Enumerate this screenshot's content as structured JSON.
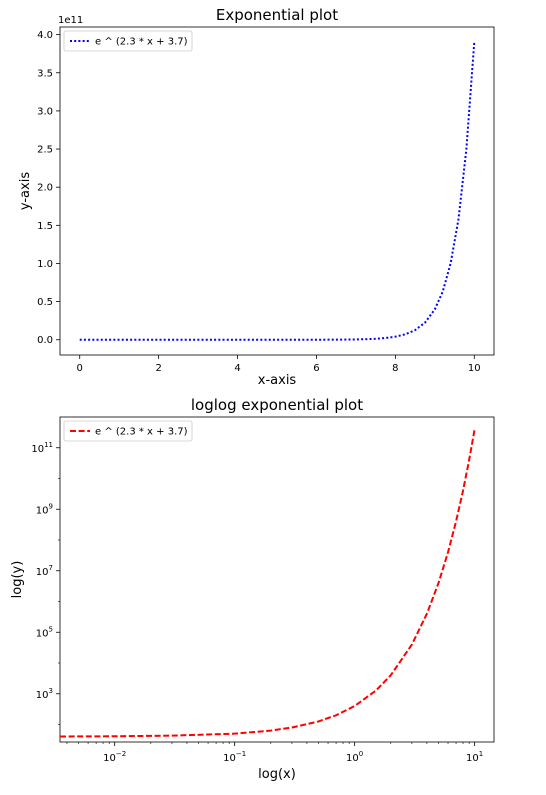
{
  "chart_data": [
    {
      "type": "line",
      "title": "Exponential plot",
      "xlabel": "x-axis",
      "ylabel": "y-axis",
      "x_scale": "linear",
      "y_scale": "linear",
      "xlim": [
        -0.5,
        10.5
      ],
      "ylim": [
        -20000000000.0,
        410000000000.0
      ],
      "y_offset_label": "1e11",
      "x_ticks": [
        0,
        2,
        4,
        6,
        8,
        10
      ],
      "x_tick_labels": [
        "0",
        "2",
        "4",
        "6",
        "8",
        "10"
      ],
      "y_ticks": [
        0,
        50000000000.0,
        100000000000.0,
        150000000000.0,
        200000000000.0,
        250000000000.0,
        300000000000.0,
        350000000000.0,
        400000000000.0
      ],
      "y_tick_labels": [
        "0.0",
        "0.5",
        "1.0",
        "1.5",
        "2.0",
        "2.5",
        "3.0",
        "3.5",
        "4.0"
      ],
      "grid": false,
      "legend_position": "upper-left",
      "series": [
        {
          "name": "e ^ (2.3 * x + 3.7)",
          "color": "#0000ff",
          "line_style": "dotted",
          "x": [
            0,
            1,
            2,
            3,
            4,
            5,
            6,
            6.5,
            7,
            7.25,
            7.5,
            7.75,
            8,
            8.25,
            8.5,
            8.75,
            9,
            9.2,
            9.4,
            9.6,
            9.8,
            10
          ],
          "y": [
            40,
            400,
            4000,
            40000,
            400000,
            4000000,
            40000000,
            130000000,
            400000000,
            720000000,
            1280000000,
            2270000000,
            4000000000,
            7100000000,
            12600000000,
            22400000000,
            39900000000,
            63000000000,
            100000000000,
            158000000000,
            250000000000,
            390000000000
          ]
        }
      ]
    },
    {
      "type": "line",
      "title": "loglog exponential plot",
      "xlabel": "log(x)",
      "ylabel": "log(y)",
      "x_scale": "log",
      "y_scale": "log",
      "xlim": [
        0.0035,
        14.5
      ],
      "ylim": [
        27,
        1000000000000.0
      ],
      "x_ticks": [
        0.01,
        0.1,
        1,
        10
      ],
      "x_tick_labels": [
        [
          "10",
          "−2"
        ],
        [
          "10",
          "−1"
        ],
        [
          "10",
          "0"
        ],
        [
          "10",
          "1"
        ]
      ],
      "y_ticks": [
        1000,
        100000,
        10000000,
        1000000000,
        100000000000
      ],
      "y_tick_labels": [
        [
          "10",
          "3"
        ],
        [
          "10",
          "5"
        ],
        [
          "10",
          "7"
        ],
        [
          "10",
          "9"
        ],
        [
          "10",
          "11"
        ]
      ],
      "grid": false,
      "legend_position": "upper-left",
      "series": [
        {
          "name": "e ^ (2.3 * x + 3.7)",
          "color": "#ff0000",
          "line_style": "dashed",
          "x": [
            0.0035,
            0.01,
            0.03,
            0.1,
            0.2,
            0.3,
            0.5,
            0.7,
            1,
            1.5,
            2,
            3,
            4,
            5,
            6,
            7,
            8,
            9,
            10
          ],
          "y": [
            40.8,
            41.4,
            43.5,
            50.4,
            63.4,
            79.8,
            126,
            200,
            400,
            1260,
            4000,
            40000,
            400000,
            4000000,
            40000000,
            400000000,
            4000000000,
            40000000000,
            400000000000
          ]
        }
      ]
    }
  ]
}
